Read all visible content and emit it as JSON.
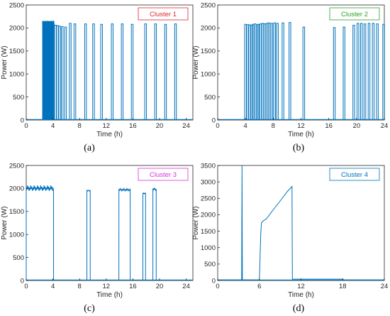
{
  "chart_data": [
    {
      "type": "line",
      "panel": "(a)",
      "xlabel": "Time (h)",
      "ylabel": "Power (W)",
      "xlim": [
        0,
        25
      ],
      "ylim": [
        0,
        2500
      ],
      "xticks": [
        0,
        4,
        8,
        12,
        16,
        20,
        24
      ],
      "yticks": [
        0,
        500,
        1000,
        1500,
        2000,
        2500
      ],
      "grid": false,
      "legend": {
        "label": "Cluster 1",
        "color": "#e0252d",
        "placement": "top-right"
      },
      "series": [
        {
          "color": "#0072bd",
          "dense_band": {
            "x_start": 2.4,
            "x_end": 4.2,
            "top": 2150,
            "bottom": 0
          },
          "spikes": [
            {
              "x": 4.4,
              "y": 2060
            },
            {
              "x": 4.7,
              "y": 2050
            },
            {
              "x": 5.0,
              "y": 2040
            },
            {
              "x": 5.4,
              "y": 2030
            },
            {
              "x": 5.9,
              "y": 2020
            },
            {
              "x": 6.6,
              "y": 2100
            },
            {
              "x": 7.3,
              "y": 2090
            },
            {
              "x": 8.9,
              "y": 2090
            },
            {
              "x": 10.1,
              "y": 2090
            },
            {
              "x": 11.3,
              "y": 2080
            },
            {
              "x": 12.9,
              "y": 2090
            },
            {
              "x": 14.4,
              "y": 2090
            },
            {
              "x": 15.9,
              "y": 2080
            },
            {
              "x": 17.9,
              "y": 2090
            },
            {
              "x": 19.4,
              "y": 2090
            },
            {
              "x": 20.9,
              "y": 2080
            },
            {
              "x": 22.4,
              "y": 2090
            }
          ]
        }
      ]
    },
    {
      "type": "line",
      "panel": "(b)",
      "xlabel": "Time (h)",
      "ylabel": "Power (W)",
      "xlim": [
        0,
        24
      ],
      "ylim": [
        0,
        2500
      ],
      "xticks": [
        0,
        4,
        8,
        12,
        16,
        20,
        24
      ],
      "yticks": [
        0,
        500,
        1000,
        1500,
        2000,
        2500
      ],
      "grid": false,
      "legend": {
        "label": "Cluster 2",
        "color": "#2ca02c",
        "placement": "top-right"
      },
      "series": [
        {
          "color": "#0072bd",
          "spikes": [
            {
              "x": 4.0,
              "y": 2080
            },
            {
              "x": 4.3,
              "y": 2070
            },
            {
              "x": 4.6,
              "y": 2070
            },
            {
              "x": 4.9,
              "y": 2060
            },
            {
              "x": 5.1,
              "y": 2080
            },
            {
              "x": 5.4,
              "y": 2090
            },
            {
              "x": 5.7,
              "y": 2070
            },
            {
              "x": 5.9,
              "y": 2080
            },
            {
              "x": 6.2,
              "y": 2090
            },
            {
              "x": 6.5,
              "y": 2100
            },
            {
              "x": 6.8,
              "y": 2090
            },
            {
              "x": 7.1,
              "y": 2100
            },
            {
              "x": 7.4,
              "y": 2110
            },
            {
              "x": 7.8,
              "y": 2100
            },
            {
              "x": 8.2,
              "y": 2110
            },
            {
              "x": 8.6,
              "y": 2100
            },
            {
              "x": 9.4,
              "y": 2110
            },
            {
              "x": 10.4,
              "y": 2120
            },
            {
              "x": 12.4,
              "y": 2020
            },
            {
              "x": 16.8,
              "y": 2010
            },
            {
              "x": 18.2,
              "y": 2020
            },
            {
              "x": 19.6,
              "y": 2060
            },
            {
              "x": 20.2,
              "y": 2100
            },
            {
              "x": 20.7,
              "y": 2100
            },
            {
              "x": 21.2,
              "y": 2090
            },
            {
              "x": 21.8,
              "y": 2100
            },
            {
              "x": 22.4,
              "y": 2100
            },
            {
              "x": 23.0,
              "y": 2090
            },
            {
              "x": 23.9,
              "y": 2080
            }
          ]
        }
      ]
    },
    {
      "type": "line",
      "panel": "(c)",
      "xlabel": "Time (h)",
      "ylabel": "Power (W)",
      "xlim": [
        0,
        25
      ],
      "ylim": [
        0,
        2500
      ],
      "xticks": [
        0,
        4,
        8,
        12,
        16,
        20,
        24
      ],
      "yticks": [
        0,
        500,
        1000,
        1500,
        2000,
        2500
      ],
      "grid": false,
      "legend": {
        "label": "Cluster 3",
        "color": "#d433d4",
        "placement": "top-right"
      },
      "series": [
        {
          "color": "#0072bd",
          "blocks": [
            {
              "x_start": 0.0,
              "x_end": 4.1,
              "level": 2000,
              "peak": 2050
            },
            {
              "x_start": 9.1,
              "x_end": 9.6,
              "level": 1950,
              "peak": 1960
            },
            {
              "x_start": 13.9,
              "x_end": 15.6,
              "level": 1970,
              "peak": 1990
            },
            {
              "x_start": 17.5,
              "x_end": 17.9,
              "level": 1890,
              "peak": 1900
            },
            {
              "x_start": 19.0,
              "x_end": 19.5,
              "level": 1980,
              "peak": 2000
            }
          ]
        }
      ]
    },
    {
      "type": "line",
      "panel": "(d)",
      "xlabel": "Time (h)",
      "ylabel": "Power (W)",
      "xlim": [
        0,
        24
      ],
      "ylim": [
        0,
        3500
      ],
      "xticks": [
        0,
        6,
        12,
        18,
        24
      ],
      "yticks": [
        0,
        500,
        1000,
        1500,
        2000,
        2500,
        3000,
        3500
      ],
      "grid": false,
      "legend": {
        "label": "Cluster 4",
        "color": "#0072bd",
        "placement": "top-right"
      },
      "series": [
        {
          "color": "#0072bd",
          "points": [
            {
              "x": 0.0,
              "y": 20
            },
            {
              "x": 3.45,
              "y": 20
            },
            {
              "x": 3.5,
              "y": 3500
            },
            {
              "x": 3.55,
              "y": 20
            },
            {
              "x": 6.0,
              "y": 20
            },
            {
              "x": 6.2,
              "y": 1400
            },
            {
              "x": 6.3,
              "y": 1750
            },
            {
              "x": 6.6,
              "y": 1820
            },
            {
              "x": 7.0,
              "y": 1870
            },
            {
              "x": 8.0,
              "y": 2150
            },
            {
              "x": 9.0,
              "y": 2420
            },
            {
              "x": 10.0,
              "y": 2700
            },
            {
              "x": 10.7,
              "y": 2860
            },
            {
              "x": 10.75,
              "y": 40
            },
            {
              "x": 18.0,
              "y": 40
            },
            {
              "x": 18.2,
              "y": 20
            },
            {
              "x": 24.0,
              "y": 20
            }
          ]
        }
      ]
    }
  ]
}
